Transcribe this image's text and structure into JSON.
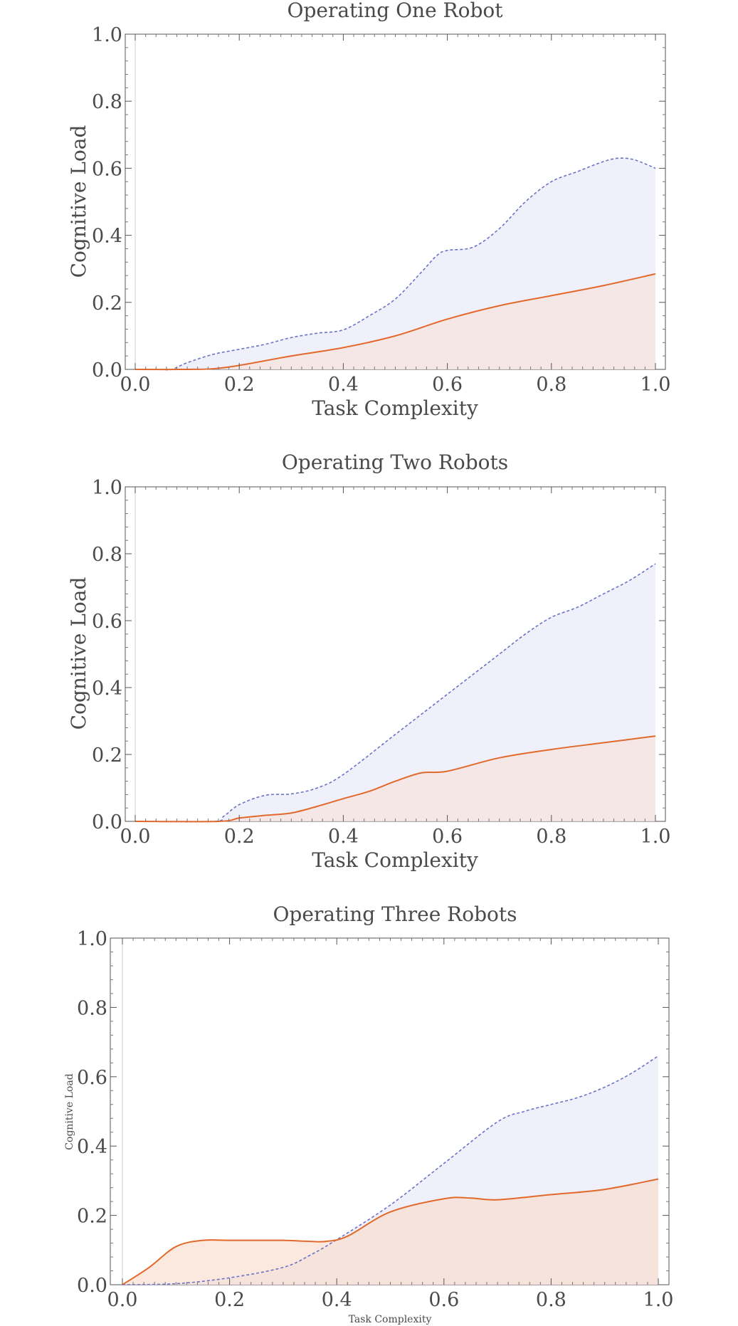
{
  "chart_data": [
    {
      "type": "area",
      "title": "Operating One Robot",
      "xlabel": "Task Complexity",
      "ylabel": "Cognitive Load",
      "xlim": [
        0,
        1
      ],
      "ylim": [
        0,
        1
      ],
      "xticks": [
        "0.0",
        "0.2",
        "0.4",
        "0.6",
        "0.8",
        "1.0"
      ],
      "yticks": [
        "0.0",
        "0.2",
        "0.4",
        "0.6",
        "0.8",
        "1.0"
      ],
      "grid": false,
      "series": [
        {
          "style": "dashed",
          "color": "#6a72c9",
          "fill": "#e6e8f6",
          "x": [
            0.0,
            0.05,
            0.07,
            0.1,
            0.15,
            0.2,
            0.25,
            0.3,
            0.35,
            0.4,
            0.45,
            0.5,
            0.55,
            0.58,
            0.6,
            0.65,
            0.7,
            0.75,
            0.8,
            0.85,
            0.9,
            0.93,
            0.96,
            1.0
          ],
          "y": [
            0.0,
            0.0,
            0.0,
            0.02,
            0.045,
            0.06,
            0.075,
            0.095,
            0.108,
            0.118,
            0.16,
            0.21,
            0.29,
            0.34,
            0.355,
            0.365,
            0.42,
            0.5,
            0.56,
            0.59,
            0.62,
            0.63,
            0.625,
            0.6
          ]
        },
        {
          "style": "solid",
          "color": "#e2692c",
          "fill": "#f7e2da",
          "x": [
            0.0,
            0.1,
            0.15,
            0.2,
            0.3,
            0.4,
            0.5,
            0.6,
            0.7,
            0.8,
            0.9,
            1.0
          ],
          "y": [
            0.0,
            0.0,
            0.002,
            0.012,
            0.04,
            0.065,
            0.1,
            0.15,
            0.19,
            0.22,
            0.25,
            0.285
          ]
        }
      ]
    },
    {
      "type": "area",
      "title": "Operating Two Robots",
      "xlabel": "Task Complexity",
      "ylabel": "Cognitive Load",
      "xlim": [
        0,
        1
      ],
      "ylim": [
        0,
        1
      ],
      "xticks": [
        "0.0",
        "0.2",
        "0.4",
        "0.6",
        "0.8",
        "1.0"
      ],
      "yticks": [
        "0.0",
        "0.2",
        "0.4",
        "0.6",
        "0.8",
        "1.0"
      ],
      "grid": false,
      "series": [
        {
          "style": "dashed",
          "color": "#6a72c9",
          "fill": "#e6e8f6",
          "x": [
            0.0,
            0.15,
            0.17,
            0.2,
            0.25,
            0.3,
            0.35,
            0.4,
            0.5,
            0.6,
            0.7,
            0.75,
            0.8,
            0.85,
            0.9,
            0.95,
            1.0
          ],
          "y": [
            0.0,
            0.0,
            0.015,
            0.05,
            0.078,
            0.082,
            0.1,
            0.14,
            0.26,
            0.38,
            0.5,
            0.56,
            0.61,
            0.64,
            0.68,
            0.72,
            0.77
          ]
        },
        {
          "style": "solid",
          "color": "#e2692c",
          "fill": "#f7e2da",
          "x": [
            0.0,
            0.16,
            0.2,
            0.25,
            0.3,
            0.35,
            0.4,
            0.45,
            0.5,
            0.55,
            0.6,
            0.7,
            0.8,
            0.9,
            1.0
          ],
          "y": [
            0.0,
            0.0,
            0.01,
            0.018,
            0.025,
            0.045,
            0.068,
            0.09,
            0.12,
            0.145,
            0.15,
            0.19,
            0.215,
            0.235,
            0.255
          ]
        }
      ]
    },
    {
      "type": "area",
      "title": "Operating Three Robots",
      "xlabel": "Task Complexity",
      "ylabel": "Cognitive Load",
      "xlim": [
        0,
        1
      ],
      "ylim": [
        0,
        1
      ],
      "xticks": [
        "0.0",
        "0.2",
        "0.4",
        "0.6",
        "0.8",
        "1.0"
      ],
      "yticks": [
        "0.0",
        "0.2",
        "0.4",
        "0.6",
        "0.8",
        "1.0"
      ],
      "grid": false,
      "series": [
        {
          "style": "dashed",
          "color": "#6a72c9",
          "fill": "#e6e8f6",
          "x": [
            0.0,
            0.1,
            0.2,
            0.3,
            0.35,
            0.4,
            0.5,
            0.6,
            0.7,
            0.75,
            0.8,
            0.85,
            0.9,
            0.95,
            1.0
          ],
          "y": [
            0.0,
            0.003,
            0.02,
            0.05,
            0.085,
            0.13,
            0.23,
            0.35,
            0.47,
            0.5,
            0.52,
            0.54,
            0.57,
            0.61,
            0.66
          ]
        },
        {
          "style": "solid",
          "color": "#e2692c",
          "fill": "#f9dccd",
          "x": [
            0.0,
            0.05,
            0.1,
            0.15,
            0.2,
            0.25,
            0.3,
            0.35,
            0.38,
            0.42,
            0.5,
            0.6,
            0.65,
            0.7,
            0.8,
            0.9,
            1.0
          ],
          "y": [
            0.0,
            0.05,
            0.11,
            0.128,
            0.128,
            0.128,
            0.128,
            0.125,
            0.125,
            0.14,
            0.21,
            0.248,
            0.25,
            0.245,
            0.26,
            0.275,
            0.305
          ]
        }
      ]
    }
  ]
}
